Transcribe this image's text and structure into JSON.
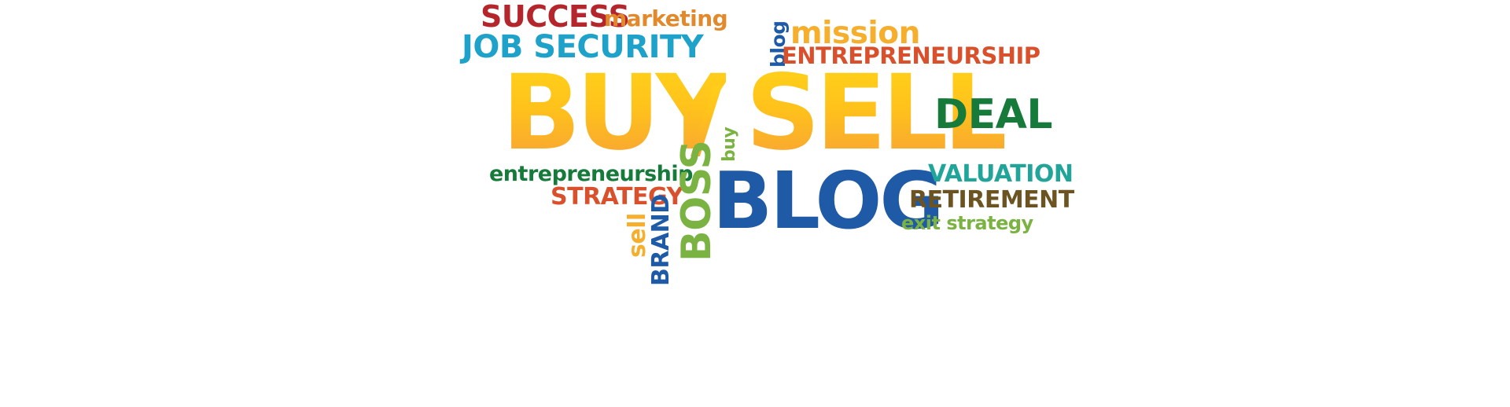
{
  "word_cloud": {
    "words": {
      "success": {
        "text": "SUCCESS",
        "color": "#b5252c"
      },
      "marketing": {
        "text": "marketing",
        "color": "#e28a2b"
      },
      "job_security": {
        "text": "JOB SECURITY",
        "color": "#1ea2c9"
      },
      "blog_vertical": {
        "text": "blog",
        "color": "#1f5aa7"
      },
      "mission": {
        "text": "mission",
        "color": "#f6ae2d"
      },
      "entrepreneurship_upper": {
        "text": "ENTREPRENEURSHIP",
        "color": "#d9512c"
      },
      "buy": {
        "text": "BUY",
        "color": "#fbb728"
      },
      "slash": {
        "text": "/",
        "color": "#fbb728"
      },
      "sell": {
        "text": "SELL",
        "color": "#fbb728"
      },
      "deal": {
        "text": "DEAL",
        "color": "#167a3b"
      },
      "buy_vertical": {
        "text": "buy",
        "color": "#7ab342"
      },
      "entrepreneurship_lower": {
        "text": "entrepreneurship",
        "color": "#167a3b"
      },
      "strategy": {
        "text": "STRATEGY",
        "color": "#d9512c"
      },
      "boss_vertical": {
        "text": "BOSS",
        "color": "#7ab342"
      },
      "brand_vertical": {
        "text": "BRAND",
        "color": "#1f5aa7"
      },
      "sell_vertical": {
        "text": "sell",
        "color": "#f6ae2d"
      },
      "blog": {
        "text": "BLOG",
        "color": "#1f5aa7"
      },
      "valuation": {
        "text": "VALUATION",
        "color": "#21a59a"
      },
      "retirement": {
        "text": "RETIREMENT",
        "color": "#6b5422"
      },
      "exit_strategy": {
        "text": "exit strategy",
        "color": "#7ab342"
      }
    }
  }
}
